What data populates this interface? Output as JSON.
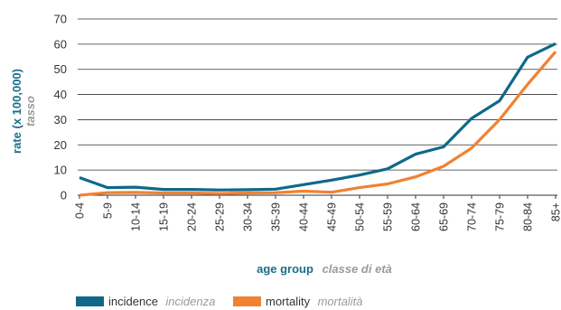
{
  "chart_data": {
    "type": "line",
    "xlabel": "age group",
    "xlabel_secondary": "classe di età",
    "ylabel": "rate (x 100,000)",
    "ylabel_secondary": "tasso",
    "ylim": [
      0,
      70
    ],
    "yticks": [
      0,
      10,
      20,
      30,
      40,
      50,
      60,
      70
    ],
    "grid": "horizontal",
    "legend_position": "bottom",
    "categories": [
      "0-4",
      "5-9",
      "10-14",
      "15-19",
      "20-24",
      "25-29",
      "30-34",
      "35-39",
      "40-44",
      "45-49",
      "50-54",
      "55-59",
      "60-64",
      "65-69",
      "70-74",
      "75-79",
      "80-84",
      "85+"
    ],
    "series": [
      {
        "name": "incidence",
        "name_secondary": "incidenza",
        "color": "#0f6889",
        "values": [
          7,
          3,
          3.2,
          2.3,
          2.3,
          2.1,
          2.2,
          2.4,
          4.2,
          6,
          8,
          10.5,
          16.3,
          19.2,
          30.5,
          37.5,
          54.8,
          60.2
        ]
      },
      {
        "name": "mortality",
        "name_secondary": "mortalità",
        "color": "#f08232",
        "values": [
          0,
          1,
          1.1,
          0.9,
          0.9,
          0.7,
          0.9,
          1,
          1.6,
          1.2,
          3,
          4.5,
          7.3,
          11.5,
          18.7,
          30,
          44,
          57
        ]
      }
    ]
  }
}
